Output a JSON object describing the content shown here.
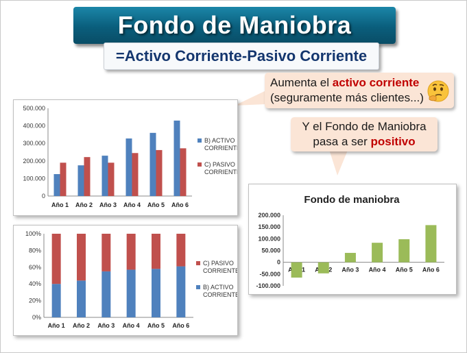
{
  "header": {
    "title": "Fondo de Maniobra",
    "formula": "=Activo Corriente-Pasivo Corriente"
  },
  "callouts": {
    "first": {
      "line1_pre": "Aumenta el ",
      "line1_highlight": "activo corriente",
      "line2": "(seguramente más clientes...)",
      "emoji": "thinking-face-icon"
    },
    "second": {
      "line1": "Y el Fondo de Maniobra",
      "line2_pre": "pasa a ser ",
      "line2_highlight": "positivo"
    }
  },
  "colors": {
    "activo": "#4f81bd",
    "pasivo": "#c0504d",
    "fondo": "#9bbb59",
    "callout_bg": "#fbe5d6",
    "highlight": "#c00000"
  },
  "chart_data": [
    {
      "type": "bar",
      "categories": [
        "Año 1",
        "Año 2",
        "Año 3",
        "Año 4",
        "Año 5",
        "Año 6"
      ],
      "series": [
        {
          "name": "B) ACTIVO CORRIENTE",
          "values": [
            125000,
            175000,
            230000,
            328000,
            360000,
            430000
          ]
        },
        {
          "name": "C) PASIVO CORRIENTE",
          "values": [
            190000,
            222000,
            190000,
            245000,
            262000,
            272000
          ]
        }
      ],
      "yticks": [
        "500.000",
        "400.000",
        "300.000",
        "200.000",
        "100.000",
        "0"
      ],
      "ylim": [
        0,
        500000
      ],
      "legend": "right",
      "grid": false
    },
    {
      "type": "bar",
      "stacked": "percent",
      "categories": [
        "Año 1",
        "Año 2",
        "Año 3",
        "Año 4",
        "Año 5",
        "Año 6"
      ],
      "series": [
        {
          "name": "B) ACTIVO CORRIENTE",
          "values": [
            40,
            44,
            55,
            57,
            58,
            61
          ]
        },
        {
          "name": "C) PASIVO CORRIENTE",
          "values": [
            60,
            56,
            45,
            43,
            42,
            39
          ]
        }
      ],
      "yticks": [
        "100%",
        "80%",
        "60%",
        "40%",
        "20%",
        "0%"
      ],
      "ylim": [
        0,
        100
      ],
      "legend": "right",
      "grid": false
    },
    {
      "type": "bar",
      "title": "Fondo de maniobra",
      "categories": [
        "Año 1",
        "Año 2",
        "Año 3",
        "Año 4",
        "Año 5",
        "Año 6"
      ],
      "values": [
        -65000,
        -47000,
        40000,
        83000,
        98000,
        158000
      ],
      "yticks": [
        "200.000",
        "150.000",
        "100.000",
        "50.000",
        "0",
        "-50.000",
        "-100.000"
      ],
      "ylim": [
        -100000,
        200000
      ],
      "legend": "none",
      "grid": false
    }
  ]
}
